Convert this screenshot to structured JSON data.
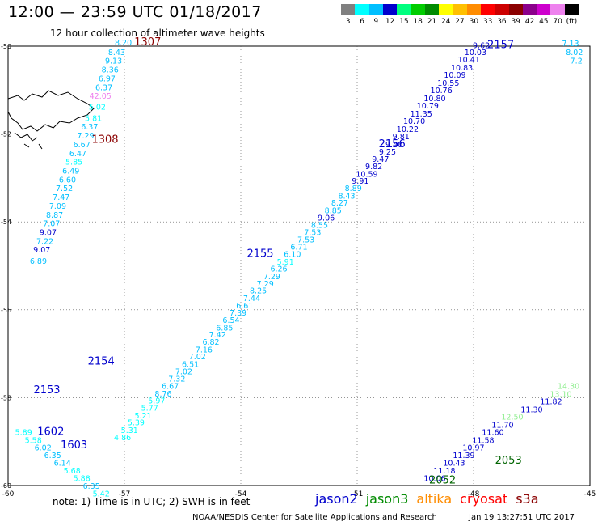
{
  "header": {
    "title": "12:00 — 23:59 UTC 01/18/2017",
    "subtitle": "12 hour collection of altimeter wave heights"
  },
  "legend": {
    "colors": [
      "#808080",
      "#00ffff",
      "#00bfff",
      "#0000cd",
      "#00ff7f",
      "#00cd00",
      "#008b00",
      "#ffff00",
      "#ffc000",
      "#ff8c00",
      "#ff0000",
      "#cd0000",
      "#8b0000",
      "#8b008b",
      "#cd00cd",
      "#ee82ee",
      "#000000"
    ],
    "labels": [
      "3",
      "6",
      "9",
      "12",
      "15",
      "18",
      "21",
      "24",
      "27",
      "30",
      "33",
      "36",
      "39",
      "42",
      "45",
      "70",
      "(ft)"
    ]
  },
  "map_data": {
    "lon_range": [
      -60,
      -45
    ],
    "lat_range": [
      -60,
      -50
    ],
    "lon_ticks": [
      "-60",
      "-57",
      "-54",
      "-51",
      "-48",
      "-45"
    ],
    "lat_ticks": [
      "-50",
      "-52",
      "-54",
      "-56",
      "-58",
      "-60"
    ],
    "pass_labels": [
      {
        "text": "1307",
        "lon": -56.4,
        "lat": -49.98,
        "color": "#8b0000"
      },
      {
        "text": "1308",
        "lon": -57.5,
        "lat": -52.2,
        "color": "#8b0000"
      },
      {
        "text": "2157",
        "lon": -47.3,
        "lat": -50.05,
        "color": "#0000cd"
      },
      {
        "text": "2156",
        "lon": -50.1,
        "lat": -52.3,
        "color": "#0000cd"
      },
      {
        "text": "2155",
        "lon": -53.5,
        "lat": -54.8,
        "color": "#0000cd"
      },
      {
        "text": "2154",
        "lon": -57.6,
        "lat": -57.25,
        "color": "#0000cd"
      },
      {
        "text": "2153",
        "lon": -59,
        "lat": -57.9,
        "color": "#0000cd"
      },
      {
        "text": "1602",
        "lon": -58.9,
        "lat": -58.85,
        "color": "#0000cd"
      },
      {
        "text": "1603",
        "lon": -58.3,
        "lat": -59.15,
        "color": "#0000cd"
      },
      {
        "text": "2053",
        "lon": -47.1,
        "lat": -59.5,
        "color": "#006400"
      },
      {
        "text": "2052",
        "lon": -48.8,
        "lat": -59.95,
        "color": "#006400"
      }
    ],
    "tracks": [
      {
        "name": "1307",
        "points": [
          {
            "lon": -57.03,
            "lat": -49.98,
            "v": "8.20",
            "c": "#00bfff"
          },
          {
            "lon": -57.2,
            "lat": -50.2,
            "v": "8.43",
            "c": "#00bfff"
          },
          {
            "lon": -57.28,
            "lat": -50.4,
            "v": "9.13",
            "c": "#00bfff"
          },
          {
            "lon": -57.37,
            "lat": -50.6,
            "v": "8.36",
            "c": "#00bfff"
          },
          {
            "lon": -57.45,
            "lat": -50.8,
            "v": "6.97",
            "c": "#00bfff"
          },
          {
            "lon": -57.53,
            "lat": -51.0,
            "v": "6.37",
            "c": "#00bfff"
          },
          {
            "lon": -57.62,
            "lat": -51.2,
            "v": "42.05",
            "c": "#ee82ee"
          },
          {
            "lon": -57.7,
            "lat": -51.45,
            "v": "5.02",
            "c": "#00ffff"
          }
        ]
      },
      {
        "name": "1308",
        "points": [
          {
            "lon": -57.8,
            "lat": -51.7,
            "v": "5.81",
            "c": "#00ffff"
          },
          {
            "lon": -57.9,
            "lat": -51.9,
            "v": "6.37",
            "c": "#00bfff"
          },
          {
            "lon": -58.0,
            "lat": -52.1,
            "v": "7.29",
            "c": "#00bfff"
          },
          {
            "lon": -58.1,
            "lat": -52.3,
            "v": "6.67",
            "c": "#00bfff"
          },
          {
            "lon": -58.2,
            "lat": -52.5,
            "v": "6.47",
            "c": "#00bfff"
          },
          {
            "lon": -58.3,
            "lat": -52.7,
            "v": "5.85",
            "c": "#00ffff"
          },
          {
            "lon": -58.38,
            "lat": -52.9,
            "v": "6.49",
            "c": "#00bfff"
          },
          {
            "lon": -58.47,
            "lat": -53.1,
            "v": "6.60",
            "c": "#00bfff"
          },
          {
            "lon": -58.55,
            "lat": -53.3,
            "v": "7.52",
            "c": "#00bfff"
          },
          {
            "lon": -58.63,
            "lat": -53.5,
            "v": "7.47",
            "c": "#00bfff"
          },
          {
            "lon": -58.72,
            "lat": -53.7,
            "v": "7.09",
            "c": "#00bfff"
          },
          {
            "lon": -58.8,
            "lat": -53.9,
            "v": "8.87",
            "c": "#00bfff"
          },
          {
            "lon": -58.88,
            "lat": -54.1,
            "v": "7.07",
            "c": "#00bfff"
          },
          {
            "lon": -58.97,
            "lat": -54.3,
            "v": "9.07",
            "c": "#0000cd"
          },
          {
            "lon": -59.05,
            "lat": -54.5,
            "v": "7.22",
            "c": "#00bfff"
          },
          {
            "lon": -59.13,
            "lat": -54.7,
            "v": "9.07",
            "c": "#0000cd"
          },
          {
            "lon": -59.22,
            "lat": -54.95,
            "v": "6.89",
            "c": "#00bfff"
          }
        ]
      },
      {
        "name": "2157",
        "points": [
          {
            "lon": -47.8,
            "lat": -50.05,
            "v": "9.62",
            "c": "#0000cd"
          },
          {
            "lon": -47.95,
            "lat": -50.2,
            "v": "10.03",
            "c": "#0000cd"
          },
          {
            "lon": -48.12,
            "lat": -50.37,
            "v": "10.41",
            "c": "#0000cd"
          },
          {
            "lon": -48.3,
            "lat": -50.55,
            "v": "10.83",
            "c": "#0000cd"
          },
          {
            "lon": -48.48,
            "lat": -50.72,
            "v": "10.09",
            "c": "#0000cd"
          },
          {
            "lon": -48.65,
            "lat": -50.9,
            "v": "10.55",
            "c": "#0000cd"
          },
          {
            "lon": -48.83,
            "lat": -51.07,
            "v": "10.76",
            "c": "#0000cd"
          },
          {
            "lon": -49.0,
            "lat": -51.25,
            "v": "10.80",
            "c": "#0000cd"
          },
          {
            "lon": -49.18,
            "lat": -51.42,
            "v": "10.79",
            "c": "#0000cd"
          },
          {
            "lon": -49.35,
            "lat": -51.6,
            "v": "11.35",
            "c": "#0000cd"
          },
          {
            "lon": -49.53,
            "lat": -51.77,
            "v": "10.70",
            "c": "#0000cd"
          },
          {
            "lon": -49.7,
            "lat": -51.95,
            "v": "10.22",
            "c": "#0000cd"
          }
        ]
      },
      {
        "name": "2156",
        "points": [
          {
            "lon": -49.87,
            "lat": -52.12,
            "v": "9.81",
            "c": "#0000cd"
          },
          {
            "lon": -50.05,
            "lat": -52.3,
            "v": "9.40",
            "c": "#0000cd"
          },
          {
            "lon": -50.22,
            "lat": -52.47,
            "v": "9.25",
            "c": "#0000cd"
          },
          {
            "lon": -50.4,
            "lat": -52.63,
            "v": "9.47",
            "c": "#0000cd"
          },
          {
            "lon": -50.57,
            "lat": -52.8,
            "v": "9.82",
            "c": "#0000cd"
          },
          {
            "lon": -50.75,
            "lat": -52.97,
            "v": "10.59",
            "c": "#0000cd"
          },
          {
            "lon": -50.92,
            "lat": -53.13,
            "v": "9.91",
            "c": "#0000cd"
          },
          {
            "lon": -51.1,
            "lat": -53.3,
            "v": "8.89",
            "c": "#00bfff"
          },
          {
            "lon": -51.27,
            "lat": -53.47,
            "v": "8.43",
            "c": "#00bfff"
          },
          {
            "lon": -51.45,
            "lat": -53.63,
            "v": "8.27",
            "c": "#00bfff"
          },
          {
            "lon": -51.62,
            "lat": -53.8,
            "v": "8.85",
            "c": "#00bfff"
          },
          {
            "lon": -51.8,
            "lat": -53.97,
            "v": "9.06",
            "c": "#0000cd"
          },
          {
            "lon": -51.97,
            "lat": -54.13,
            "v": "8.55",
            "c": "#00bfff"
          },
          {
            "lon": -52.15,
            "lat": -54.3,
            "v": "7.53",
            "c": "#00bfff"
          },
          {
            "lon": -52.32,
            "lat": -54.47,
            "v": "7.53",
            "c": "#00bfff"
          },
          {
            "lon": -52.5,
            "lat": -54.63,
            "v": "6.71",
            "c": "#00bfff"
          },
          {
            "lon": -52.67,
            "lat": -54.8,
            "v": "6.10",
            "c": "#00bfff"
          }
        ]
      },
      {
        "name": "2155",
        "points": [
          {
            "lon": -52.85,
            "lat": -54.97,
            "v": "5.91",
            "c": "#00ffff"
          },
          {
            "lon": -53.02,
            "lat": -55.13,
            "v": "6.26",
            "c": "#00bfff"
          },
          {
            "lon": -53.2,
            "lat": -55.3,
            "v": "7.29",
            "c": "#00bfff"
          },
          {
            "lon": -53.37,
            "lat": -55.47,
            "v": "7.29",
            "c": "#00bfff"
          },
          {
            "lon": -53.55,
            "lat": -55.63,
            "v": "8.25",
            "c": "#00bfff"
          },
          {
            "lon": -53.72,
            "lat": -55.8,
            "v": "7.44",
            "c": "#00bfff"
          },
          {
            "lon": -53.9,
            "lat": -55.97,
            "v": "6.61",
            "c": "#00bfff"
          },
          {
            "lon": -54.07,
            "lat": -56.13,
            "v": "7.39",
            "c": "#00bfff"
          },
          {
            "lon": -54.25,
            "lat": -56.3,
            "v": "6.54",
            "c": "#00bfff"
          },
          {
            "lon": -54.42,
            "lat": -56.47,
            "v": "6.85",
            "c": "#00bfff"
          },
          {
            "lon": -54.6,
            "lat": -56.63,
            "v": "7.42",
            "c": "#00bfff"
          },
          {
            "lon": -54.77,
            "lat": -56.8,
            "v": "6.82",
            "c": "#00bfff"
          },
          {
            "lon": -54.95,
            "lat": -56.97,
            "v": "7.16",
            "c": "#00bfff"
          },
          {
            "lon": -55.12,
            "lat": -57.13,
            "v": "7.02",
            "c": "#00bfff"
          },
          {
            "lon": -55.3,
            "lat": -57.3,
            "v": "6.51",
            "c": "#00bfff"
          },
          {
            "lon": -55.47,
            "lat": -57.47,
            "v": "7.02",
            "c": "#00bfff"
          },
          {
            "lon": -55.65,
            "lat": -57.63,
            "v": "7.32",
            "c": "#00bfff"
          }
        ]
      },
      {
        "name": "2154",
        "points": [
          {
            "lon": -55.82,
            "lat": -57.8,
            "v": "6.67",
            "c": "#00bfff"
          },
          {
            "lon": -56.0,
            "lat": -57.97,
            "v": "8.76",
            "c": "#00bfff"
          },
          {
            "lon": -56.17,
            "lat": -58.13,
            "v": "5.97",
            "c": "#00ffff"
          },
          {
            "lon": -56.35,
            "lat": -58.3,
            "v": "5.77",
            "c": "#00ffff"
          },
          {
            "lon": -56.52,
            "lat": -58.47,
            "v": "5.21",
            "c": "#00ffff"
          },
          {
            "lon": -56.7,
            "lat": -58.63,
            "v": "5.39",
            "c": "#00ffff"
          },
          {
            "lon": -56.87,
            "lat": -58.8,
            "v": "5.31",
            "c": "#00ffff"
          },
          {
            "lon": -57.05,
            "lat": -58.97,
            "v": "4.86",
            "c": "#00ffff"
          }
        ]
      },
      {
        "name": "1602",
        "points": [
          {
            "lon": -59.6,
            "lat": -58.85,
            "v": "5.89",
            "c": "#00ffff"
          },
          {
            "lon": -59.35,
            "lat": -59.03,
            "v": "5.58",
            "c": "#00ffff"
          },
          {
            "lon": -59.1,
            "lat": -59.2,
            "v": "6.02",
            "c": "#00bfff"
          },
          {
            "lon": -58.85,
            "lat": -59.37,
            "v": "6.35",
            "c": "#00bfff"
          },
          {
            "lon": -58.6,
            "lat": -59.55,
            "v": "6.14",
            "c": "#00bfff"
          },
          {
            "lon": -58.35,
            "lat": -59.72,
            "v": "5.68",
            "c": "#00ffff"
          },
          {
            "lon": -58.1,
            "lat": -59.9,
            "v": "5.88",
            "c": "#00ffff"
          },
          {
            "lon": -57.85,
            "lat": -60.07,
            "v": "6.35",
            "c": "#00bfff"
          },
          {
            "lon": -57.6,
            "lat": -60.25,
            "v": "5.42",
            "c": "#00ffff"
          }
        ]
      },
      {
        "name": "2053",
        "points": [
          {
            "lon": -49.0,
            "lat": -59.9,
            "v": "10.06",
            "c": "#0000cd"
          },
          {
            "lon": -48.75,
            "lat": -59.72,
            "v": "11.18",
            "c": "#0000cd"
          },
          {
            "lon": -48.5,
            "lat": -59.55,
            "v": "10.43",
            "c": "#0000cd"
          },
          {
            "lon": -48.25,
            "lat": -59.37,
            "v": "11.39",
            "c": "#0000cd"
          },
          {
            "lon": -48.0,
            "lat": -59.2,
            "v": "10.97",
            "c": "#0000cd"
          },
          {
            "lon": -47.75,
            "lat": -59.03,
            "v": "11.58",
            "c": "#0000cd"
          },
          {
            "lon": -47.5,
            "lat": -58.85,
            "v": "11.60",
            "c": "#0000cd"
          },
          {
            "lon": -47.25,
            "lat": -58.68,
            "v": "11.70",
            "c": "#0000cd"
          },
          {
            "lon": -47.0,
            "lat": -58.5,
            "v": "12.50",
            "c": "#90ee90"
          },
          {
            "lon": -46.5,
            "lat": -58.33,
            "v": "11.30",
            "c": "#0000cd"
          },
          {
            "lon": -46.0,
            "lat": -58.15,
            "v": "11.82",
            "c": "#0000cd"
          },
          {
            "lon": -45.75,
            "lat": -57.98,
            "v": "13.10",
            "c": "#90ee90"
          },
          {
            "lon": -45.55,
            "lat": -57.8,
            "v": "14.30",
            "c": "#90ee90"
          }
        ]
      },
      {
        "name": "edge",
        "points": [
          {
            "lon": -45.5,
            "lat": -50.0,
            "v": "7.13",
            "c": "#00bfff"
          },
          {
            "lon": -45.4,
            "lat": -50.2,
            "v": "8.02",
            "c": "#00bfff"
          },
          {
            "lon": -45.35,
            "lat": -50.4,
            "v": "7.2",
            "c": "#00bfff"
          }
        ]
      }
    ]
  },
  "footer": {
    "note": "note: 1) Time is in UTC; 2) SWH is in feet",
    "satellites": [
      {
        "name": "jason2",
        "color": "#0000cd"
      },
      {
        "name": "jason3",
        "color": "#008b00"
      },
      {
        "name": "altika",
        "color": "#ff8c00"
      },
      {
        "name": "cryosat",
        "color": "#ff0000"
      },
      {
        "name": "s3a",
        "color": "#8b0000"
      }
    ],
    "source": "NOAA/NESDIS Center for Satellite Applications and Research",
    "date": "Jan 19 13:27:51 UTC 2017"
  }
}
